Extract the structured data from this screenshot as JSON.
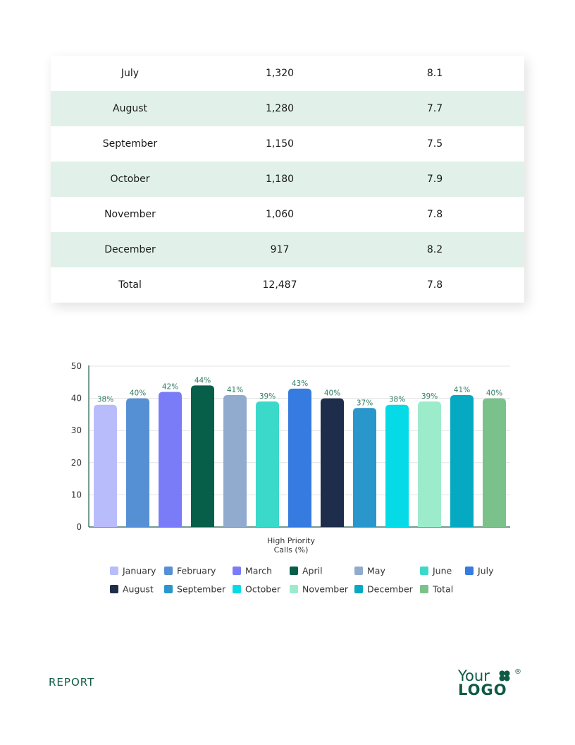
{
  "table": {
    "rows": [
      {
        "month": "July",
        "calls": "1,320",
        "score": "8.1"
      },
      {
        "month": "August",
        "calls": "1,280",
        "score": "7.7"
      },
      {
        "month": "September",
        "calls": "1,150",
        "score": "7.5"
      },
      {
        "month": "October",
        "calls": "1,180",
        "score": "7.9"
      },
      {
        "month": "November",
        "calls": "1,060",
        "score": "7.8"
      },
      {
        "month": "December",
        "calls": "917",
        "score": "8.2"
      },
      {
        "month": "Total",
        "calls": "12,487",
        "score": "7.8"
      }
    ]
  },
  "chart_data": {
    "type": "bar",
    "categories": [
      "High Priority Calls (%)"
    ],
    "xlabel_lines": [
      "High Priority",
      "Calls (%)"
    ],
    "ylim": [
      0,
      50
    ],
    "yticks": [
      0,
      10,
      20,
      30,
      40,
      50
    ],
    "grid": true,
    "legend_position": "bottom",
    "series": [
      {
        "name": "January",
        "value": 38,
        "label": "38%",
        "color": "#b9bcfb"
      },
      {
        "name": "February",
        "value": 40,
        "label": "40%",
        "color": "#5590d5"
      },
      {
        "name": "March",
        "value": 42,
        "label": "42%",
        "color": "#7a7cf7"
      },
      {
        "name": "April",
        "value": 44,
        "label": "44%",
        "color": "#075e49"
      },
      {
        "name": "May",
        "value": 41,
        "label": "41%",
        "color": "#90abcd"
      },
      {
        "name": "June",
        "value": 39,
        "label": "39%",
        "color": "#3ad9c9"
      },
      {
        "name": "July",
        "value": 43,
        "label": "43%",
        "color": "#357be0"
      },
      {
        "name": "August",
        "value": 40,
        "label": "40%",
        "color": "#1e2d4c"
      },
      {
        "name": "September",
        "value": 37,
        "label": "37%",
        "color": "#2a97cc"
      },
      {
        "name": "October",
        "value": 38,
        "label": "38%",
        "color": "#05dbe7"
      },
      {
        "name": "November",
        "value": 39,
        "label": "39%",
        "color": "#9ceccb"
      },
      {
        "name": "December",
        "value": 41,
        "label": "41%",
        "color": "#06a9c2"
      },
      {
        "name": "Total",
        "value": 40,
        "label": "40%",
        "color": "#7bc18c"
      }
    ],
    "label_color": "#2f7a62"
  },
  "footer": {
    "report_label": "REPORT",
    "logo_line1": "Your",
    "logo_line2": "LOGO",
    "logo_reg": "®"
  },
  "colors": {
    "brand": "#0e5a44",
    "row_alt": "#e1f1ea"
  }
}
